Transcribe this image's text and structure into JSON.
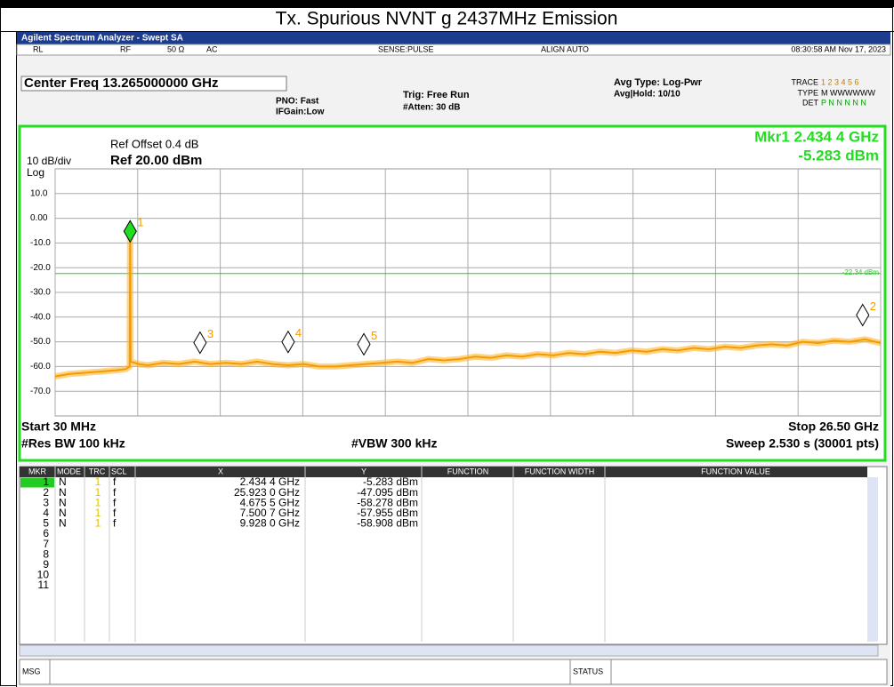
{
  "page_title": "Tx. Spurious NVNT g 2437MHz Emission",
  "window": {
    "title": "Agilent Spectrum Analyzer - Swept SA",
    "status": {
      "rl": "RL",
      "rf": "RF",
      "imp": "50 Ω",
      "ac": "AC",
      "sense": "SENSE:PULSE",
      "align": "ALIGN AUTO",
      "time": "08:30:58 AM Nov 17, 2023"
    },
    "center_freq": "Center Freq 13.265000000 GHz",
    "pno": "PNO: Fast",
    "ifgain": "IFGain:Low",
    "trig": "Trig: Free Run",
    "atten": "#Atten: 30 dB",
    "avg_type": "Avg Type: Log-Pwr",
    "avg_hold": "Avg|Hold: 10/10",
    "trace_label": "TRACE",
    "trace_nums": "1 2 3 4 5 6",
    "type_label": "TYPE",
    "type_val": "M WWWWWW",
    "det_label": "DET",
    "det_val": "P N N N N N"
  },
  "plot": {
    "ref_offset": "Ref Offset 0.4 dB",
    "scale": "10 dB/div",
    "ref": "Ref 20.00 dBm",
    "log": "Log",
    "mkr_freq": "Mkr1 2.434 4 GHz",
    "mkr_val": "-5.283 dBm",
    "xlim": [
      0.03,
      26.5
    ],
    "ylim": [
      -80,
      20
    ],
    "xgrid": [
      0.03,
      2.677,
      5.324,
      7.971,
      10.618,
      13.265,
      15.912,
      18.559,
      21.206,
      23.853,
      26.5
    ],
    "yticks": [
      {
        "value": 10,
        "label": "10.0"
      },
      {
        "value": 0,
        "label": "0.00"
      },
      {
        "value": -10,
        "label": "-10.0"
      },
      {
        "value": -20,
        "label": "-20.0"
      },
      {
        "value": -30,
        "label": "-30.0"
      },
      {
        "value": -40,
        "label": "-40.0"
      },
      {
        "value": -50,
        "label": "-50.0"
      },
      {
        "value": -60,
        "label": "-60.0"
      },
      {
        "value": -70,
        "label": "-70.0"
      }
    ],
    "display_line": {
      "value": -22.34,
      "label": "-22.34 dBm"
    },
    "trace": {
      "freq_ghz": [
        0.03,
        0.5,
        1,
        1.5,
        2,
        2.3,
        2.42,
        2.4344,
        2.45,
        2.7,
        3,
        3.5,
        4,
        4.5,
        5,
        5.5,
        6,
        6.5,
        7,
        7.5,
        8,
        8.5,
        9,
        9.5,
        10,
        10.5,
        11,
        11.5,
        12,
        12.5,
        13,
        13.5,
        14,
        14.5,
        15,
        15.5,
        16,
        16.5,
        17,
        17.5,
        18,
        18.5,
        19,
        19.5,
        20,
        20.5,
        21,
        21.5,
        22,
        22.5,
        23,
        23.5,
        24,
        24.5,
        25,
        25.5,
        26,
        26.5
      ],
      "dbm": [
        -64,
        -63,
        -62.5,
        -62,
        -61.5,
        -61,
        -60,
        -5.283,
        -58,
        -59,
        -59.5,
        -58.5,
        -59,
        -58,
        -59,
        -58.5,
        -59,
        -58,
        -59,
        -59.5,
        -59,
        -60,
        -60,
        -59.5,
        -59,
        -58.5,
        -58,
        -58.5,
        -57,
        -57.5,
        -57,
        -56,
        -56.5,
        -55.5,
        -56,
        -55,
        -55.5,
        -54.5,
        -55,
        -54,
        -54.5,
        -53.5,
        -54,
        -53,
        -53.5,
        -52.5,
        -53,
        -52,
        -52.5,
        -51.5,
        -51,
        -51.5,
        -50,
        -50.5,
        -49.5,
        -50,
        -49,
        -50.5
      ]
    },
    "markers": [
      {
        "x": 2.4344,
        "y": -5.283
      },
      {
        "x": 25.923,
        "y": -47.095
      },
      {
        "x": 4.6755,
        "y": -58.278
      },
      {
        "x": 7.5007,
        "y": -57.955
      },
      {
        "x": 9.928,
        "y": -58.908
      }
    ],
    "start": "Start 30 MHz",
    "stop": "Stop 26.50 GHz",
    "rbw": "#Res BW 100 kHz",
    "vbw": "#VBW 300 kHz",
    "sweep": "Sweep  2.530 s (30001 pts)"
  },
  "table": {
    "headers": [
      "MKR",
      "MODE",
      "TRC",
      "SCL",
      "X",
      "Y",
      "FUNCTION",
      "FUNCTION WIDTH",
      "FUNCTION VALUE"
    ],
    "rows": [
      [
        "1",
        "N",
        "1",
        "f",
        "2.434 4 GHz",
        "-5.283 dBm"
      ],
      [
        "2",
        "N",
        "1",
        "f",
        "25.923 0 GHz",
        "-47.095 dBm"
      ],
      [
        "3",
        "N",
        "1",
        "f",
        "4.675 5 GHz",
        "-58.278 dBm"
      ],
      [
        "4",
        "N",
        "1",
        "f",
        "7.500 7 GHz",
        "-57.955 dBm"
      ],
      [
        "5",
        "N",
        "1",
        "f",
        "9.928 0 GHz",
        "-58.908 dBm"
      ],
      [
        "6"
      ],
      [
        "7"
      ],
      [
        "8"
      ],
      [
        "9"
      ],
      [
        "10"
      ],
      [
        "11"
      ]
    ]
  },
  "statusbar": {
    "msg": "MSG",
    "status": "STATUS"
  }
}
